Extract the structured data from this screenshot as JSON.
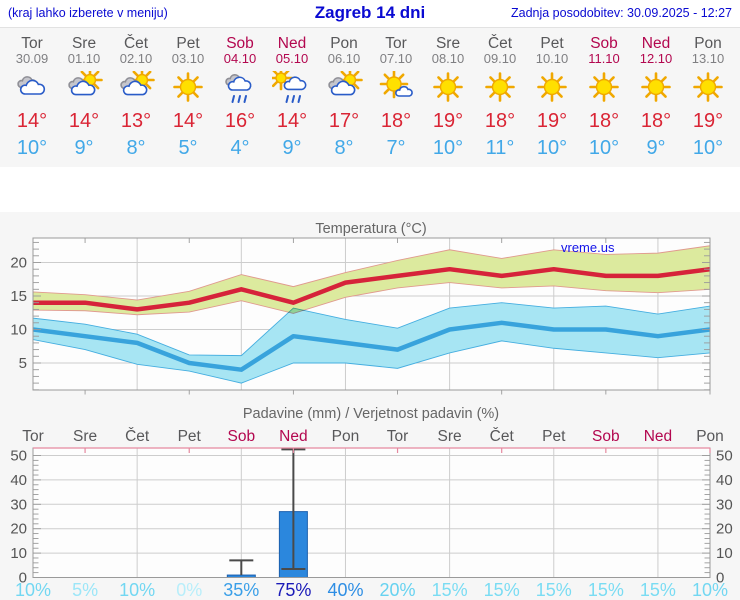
{
  "header": {
    "menu_hint": "(kraj lahko izberete v meniju)",
    "title": "Zagreb 14 dni",
    "last_update": "Zadnja posodobitev: 30.09.2025 - 12:27"
  },
  "days": [
    {
      "name": "Tor",
      "date": "30.09",
      "weekend": false,
      "icon": "cloudy-icon",
      "tmax": "14°",
      "tmin": "10°"
    },
    {
      "name": "Sre",
      "date": "01.10",
      "weekend": false,
      "icon": "partly-cloudy-icon",
      "tmax": "14°",
      "tmin": "9°"
    },
    {
      "name": "Čet",
      "date": "02.10",
      "weekend": false,
      "icon": "partly-cloudy-icon",
      "tmax": "13°",
      "tmin": "8°"
    },
    {
      "name": "Pet",
      "date": "03.10",
      "weekend": false,
      "icon": "sunny-icon",
      "tmax": "14°",
      "tmin": "5°"
    },
    {
      "name": "Sob",
      "date": "04.10",
      "weekend": true,
      "icon": "rain-icon",
      "tmax": "16°",
      "tmin": "4°"
    },
    {
      "name": "Ned",
      "date": "05.10",
      "weekend": true,
      "icon": "sun-rain-icon",
      "tmax": "14°",
      "tmin": "9°"
    },
    {
      "name": "Pon",
      "date": "06.10",
      "weekend": false,
      "icon": "partly-cloudy-icon",
      "tmax": "17°",
      "tmin": "8°"
    },
    {
      "name": "Tor",
      "date": "07.10",
      "weekend": false,
      "icon": "mostly-sunny-icon",
      "tmax": "18°",
      "tmin": "7°"
    },
    {
      "name": "Sre",
      "date": "08.10",
      "weekend": false,
      "icon": "sunny-icon",
      "tmax": "19°",
      "tmin": "10°"
    },
    {
      "name": "Čet",
      "date": "09.10",
      "weekend": false,
      "icon": "sunny-icon",
      "tmax": "18°",
      "tmin": "11°"
    },
    {
      "name": "Pet",
      "date": "10.10",
      "weekend": false,
      "icon": "sunny-icon",
      "tmax": "19°",
      "tmin": "10°"
    },
    {
      "name": "Sob",
      "date": "11.10",
      "weekend": true,
      "icon": "sunny-icon",
      "tmax": "18°",
      "tmin": "10°"
    },
    {
      "name": "Ned",
      "date": "12.10",
      "weekend": true,
      "icon": "sunny-icon",
      "tmax": "18°",
      "tmin": "9°"
    },
    {
      "name": "Pon",
      "date": "13.10",
      "weekend": false,
      "icon": "sunny-icon",
      "tmax": "19°",
      "tmin": "10°"
    }
  ],
  "colors": {
    "header_blue": "#0a0ad2",
    "weekday": "#58585a",
    "weekend": "#b3074f",
    "tmax_red": "#da2535",
    "tmin_blue": "#41a8e8",
    "grid": "#cdcdcd",
    "frame": "#9a9a9a",
    "axis_text": "#555555",
    "title_text": "#666666",
    "pink_axis": "#e5899f",
    "watermark_blue": "#1313e8"
  },
  "chart_data": [
    {
      "type": "line",
      "title": "Temperatura (°C)",
      "watermark": "vreme.us",
      "x_labels": [
        "Tor",
        "Sre",
        "Čet",
        "Pet",
        "Sob",
        "Ned",
        "Pon",
        "Tor",
        "Sre",
        "Čet",
        "Pet",
        "Sob",
        "Ned",
        "Pon"
      ],
      "ylim": [
        1,
        23.5
      ],
      "yticks": [
        5,
        10,
        15,
        20
      ],
      "grid": true,
      "series": [
        {
          "name": "max-temperature",
          "color": "#d6233a",
          "band_color": "#dcea9e",
          "band_edge": "#e09a8e",
          "values": [
            14,
            14,
            13,
            14,
            16,
            14,
            17,
            18,
            19,
            18,
            19,
            18,
            18,
            19
          ],
          "band_upper": [
            15.6,
            15.2,
            14.4,
            15.7,
            18.2,
            16.4,
            18.5,
            20.3,
            21.9,
            20.6,
            21.9,
            21.2,
            21.4,
            22.5
          ],
          "band_lower": [
            12.9,
            12.8,
            12.2,
            12.6,
            14.3,
            12.4,
            14.8,
            16.2,
            17.0,
            16.2,
            16.5,
            15.8,
            15.5,
            16.0
          ]
        },
        {
          "name": "min-temperature",
          "color": "#38a3dc",
          "band_color": "#a7e5f3",
          "band_edge": "#45aee0",
          "values": [
            10,
            9,
            8,
            5,
            4,
            9,
            8,
            7,
            10,
            11,
            10,
            10,
            9,
            10
          ],
          "band_upper": [
            11.7,
            10.8,
            9.3,
            6.2,
            6.1,
            13.2,
            11.5,
            10.2,
            13.2,
            14.0,
            13.2,
            13.5,
            12.3,
            13.5
          ],
          "band_lower": [
            8.5,
            7.0,
            4.8,
            3.8,
            2.0,
            5.0,
            5.0,
            4.2,
            6.5,
            8.3,
            7.2,
            6.5,
            5.8,
            6.5
          ]
        }
      ]
    },
    {
      "type": "bar",
      "title": "Padavine (mm) / Verjetnost padavin (%)",
      "x_labels": [
        "Tor",
        "Sre",
        "Čet",
        "Pet",
        "Sob",
        "Ned",
        "Pon",
        "Tor",
        "Sre",
        "Čet",
        "Pet",
        "Sob",
        "Ned",
        "Pon"
      ],
      "weekend_flags": [
        false,
        false,
        false,
        false,
        true,
        true,
        false,
        false,
        false,
        false,
        false,
        true,
        true,
        false
      ],
      "ylim": [
        0,
        53
      ],
      "yticks": [
        0,
        10,
        20,
        30,
        40,
        50
      ],
      "bar_color": "#2b87dd",
      "bar_edge": "#1a5fae",
      "whisker_color": "#4a4a4a",
      "values": [
        0,
        0,
        0,
        0,
        1,
        27,
        0,
        0,
        0,
        0,
        0,
        0,
        0,
        0
      ],
      "whiskers": [
        {
          "day": 4,
          "lo": 1,
          "hi": 7,
          "lo_cap": false
        },
        {
          "day": 5,
          "lo": 3.5,
          "hi": 52.5,
          "lo_cap": true
        }
      ],
      "probabilities": [
        "10%",
        "5%",
        "10%",
        "0%",
        "35%",
        "75%",
        "40%",
        "20%",
        "15%",
        "15%",
        "15%",
        "15%",
        "15%",
        "10%"
      ],
      "probability_colors": [
        "#72d7f2",
        "#9ce6f8",
        "#72d7f2",
        "#b8eefa",
        "#3a9fe8",
        "#1a1ab8",
        "#2e8ee4",
        "#66d2f0",
        "#7adcf3",
        "#7adcf3",
        "#7adcf3",
        "#7adcf3",
        "#7adcf3",
        "#72d7f2"
      ]
    }
  ]
}
